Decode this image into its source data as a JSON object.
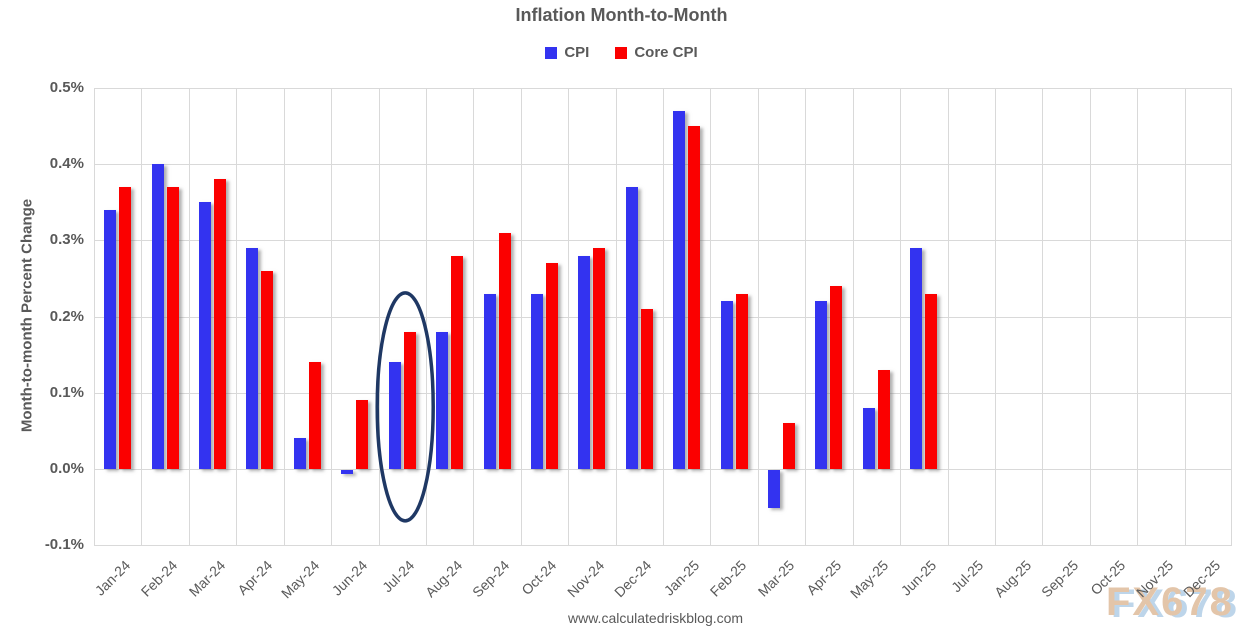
{
  "title": "Inflation Month-to-Month",
  "legend": [
    {
      "label": "CPI",
      "color": "#3333f0"
    },
    {
      "label": "Core CPI",
      "color": "#fb0000"
    }
  ],
  "footer_url": "www.calculatedriskblog.com",
  "watermark": "FX678",
  "colors": {
    "text": "#595959",
    "gridline": "#d9d9d9",
    "cpi_blue": "#3333f0",
    "core_cpi_red": "#fb0000",
    "annotation_ellipse": "#1f3864",
    "watermark_tan": "#e3c5a9",
    "watermark_blue": "#bdd5ea"
  },
  "chart_data": {
    "type": "bar",
    "title": "Inflation Month-to-Month",
    "xlabel": "",
    "ylabel": "Month-to-month Percent Change",
    "ylim": [
      -0.1,
      0.5
    ],
    "ytick_labels": [
      "0.5%",
      "0.4%",
      "0.3%",
      "0.2%",
      "0.1%",
      "0.0%",
      "-0.1%"
    ],
    "grid": true,
    "legend_position": "top-center",
    "categories": [
      "Jan-24",
      "Feb-24",
      "Mar-24",
      "Apr-24",
      "May-24",
      "Jun-24",
      "Jul-24",
      "Aug-24",
      "Sep-24",
      "Oct-24",
      "Nov-24",
      "Dec-24",
      "Jan-25",
      "Feb-25",
      "Mar-25",
      "Apr-25",
      "May-25",
      "Jun-25",
      "Jul-25",
      "Aug-25",
      "Sep-25",
      "Oct-25",
      "Nov-25",
      "Dec-25"
    ],
    "series": [
      {
        "name": "CPI",
        "color": "#3333f0",
        "values": [
          0.34,
          0.4,
          0.35,
          0.29,
          0.04,
          -0.005,
          0.14,
          0.18,
          0.23,
          0.23,
          0.28,
          0.37,
          0.47,
          0.22,
          -0.05,
          0.22,
          0.08,
          0.29,
          null,
          null,
          null,
          null,
          null,
          null
        ]
      },
      {
        "name": "Core CPI",
        "color": "#fb0000",
        "values": [
          0.37,
          0.37,
          0.38,
          0.26,
          0.14,
          0.09,
          0.18,
          0.28,
          0.31,
          0.27,
          0.29,
          0.21,
          0.45,
          0.23,
          0.06,
          0.24,
          0.13,
          0.23,
          null,
          null,
          null,
          null,
          null,
          null
        ]
      }
    ],
    "annotations": [
      {
        "type": "ellipse",
        "category": "Jul-24",
        "color": "#1f3864",
        "note": "circled highlight on Jul-24 bars"
      }
    ]
  }
}
